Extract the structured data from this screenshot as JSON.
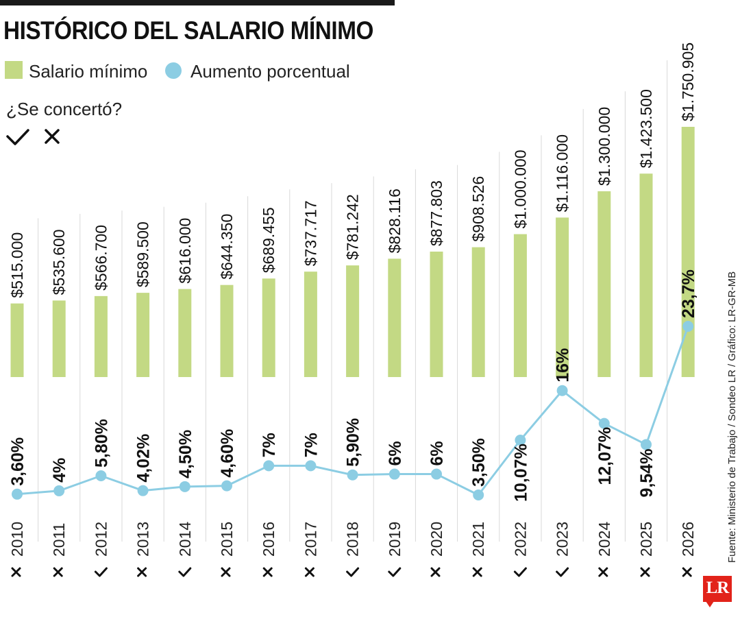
{
  "title": "HISTÓRICO DEL SALARIO MÍNIMO",
  "legend": {
    "bar_label": "Salario mínimo",
    "dot_label": "Aumento porcentual",
    "agreement_question": "¿Se concertó?",
    "check_symbol": "✓",
    "cross_symbol": "×"
  },
  "source": "Fuente: Ministerio de Trabajo / Sondeo LR / Gráfico: LR-GR-MB",
  "logo": "LR",
  "colors": {
    "bar": "#c3d984",
    "line": "#8ccde3",
    "grid": "#d8d8d8",
    "logo": "#e2231a"
  },
  "chart_data": {
    "type": "bar",
    "categories": [
      "2010",
      "2011",
      "2012",
      "2013",
      "2014",
      "2015",
      "2016",
      "2017",
      "2018",
      "2019",
      "2020",
      "2021",
      "2022",
      "2023",
      "2024",
      "2025",
      "2026"
    ],
    "series": [
      {
        "name": "Salario mínimo",
        "type": "bar",
        "values": [
          515000,
          535600,
          566700,
          589500,
          616000,
          644350,
          689455,
          737717,
          781242,
          828116,
          877803,
          908526,
          1000000,
          1116000,
          1300000,
          1423500,
          1750905
        ],
        "labels": [
          "$515.000",
          "$535.600",
          "$566.700",
          "$589.500",
          "$616.000",
          "$644.350",
          "$689.455",
          "$737.717",
          "$781.242",
          "$828.116",
          "$877.803",
          "$908.526",
          "$1.000.000",
          "$1.116.000",
          "$1.300.000",
          "$1.423.500",
          "$1.750.905"
        ]
      },
      {
        "name": "Aumento porcentual",
        "type": "line",
        "values": [
          3.6,
          4,
          5.8,
          4.02,
          4.5,
          4.6,
          7,
          7,
          5.9,
          6,
          6,
          3.5,
          10.07,
          16,
          12.07,
          9.54,
          23.7
        ],
        "labels": [
          "3,60%",
          "4%",
          "5,80%",
          "4,02%",
          "4,50%",
          "4,60%",
          "7%",
          "7%",
          "5,90%",
          "6%",
          "6%",
          "3,50%",
          "10,07%",
          "16%",
          "12,07%",
          "9,54%",
          "23,7%"
        ]
      }
    ],
    "concerted": [
      false,
      false,
      true,
      false,
      true,
      false,
      false,
      false,
      true,
      true,
      false,
      false,
      true,
      true,
      false,
      false,
      false
    ],
    "bar_range": [
      0,
      1750905
    ],
    "grid": true
  }
}
